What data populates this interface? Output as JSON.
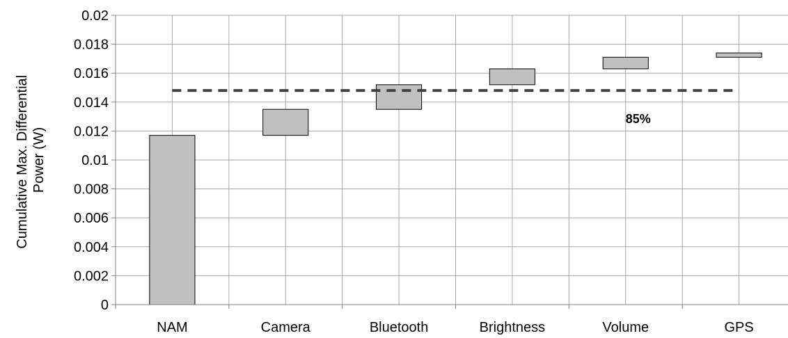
{
  "chart_data": {
    "type": "bar",
    "subtype": "waterfall",
    "categories": [
      "NAM",
      "Camera",
      "Bluetooth",
      "Brightness",
      "Volume",
      "GPS"
    ],
    "ranges": [
      [
        0,
        0.0117
      ],
      [
        0.0117,
        0.0135
      ],
      [
        0.0135,
        0.0152
      ],
      [
        0.0152,
        0.0163
      ],
      [
        0.0163,
        0.0171
      ],
      [
        0.0171,
        0.0174
      ]
    ],
    "ylabel_lines": [
      "Cumulative Max. Differential",
      "Power  (W)"
    ],
    "ylim": [
      0,
      0.02
    ],
    "yticks": [
      0,
      0.002,
      0.004,
      0.006,
      0.008,
      0.01,
      0.012,
      0.014,
      0.016,
      0.018,
      0.02
    ],
    "ytick_labels": [
      "0",
      "0.002",
      "0.004",
      "0.006",
      "0.008",
      "0.01",
      "0.012",
      "0.014",
      "0.016",
      "0.018",
      "0.02"
    ],
    "reference_line": {
      "value": 0.0148,
      "style": "dashed",
      "label": "85%"
    },
    "grid": true,
    "colors": {
      "bar_fill": "#c0c0c0",
      "bar_stroke": "#000000",
      "grid": "#a6a6a6",
      "reference": "#404040"
    }
  }
}
